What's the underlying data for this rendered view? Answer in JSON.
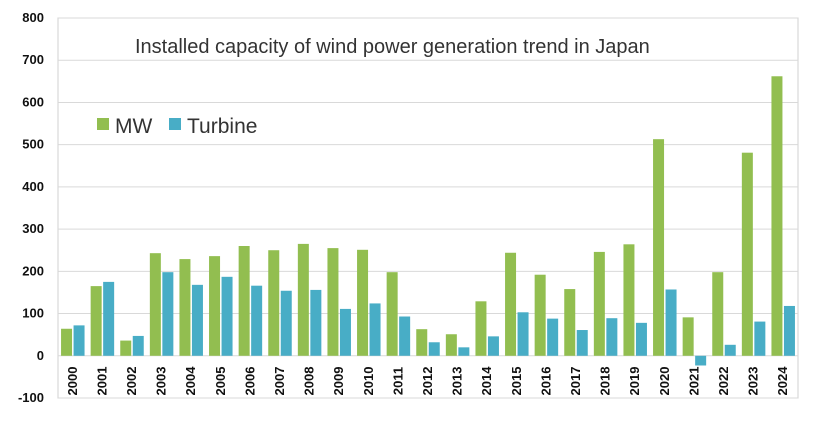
{
  "chart_data": {
    "type": "bar",
    "title": "Installed capacity of wind power generation trend in Japan",
    "xlabel": "",
    "ylabel": "",
    "ylim": [
      -100,
      800
    ],
    "yticks": [
      -100,
      0,
      100,
      200,
      300,
      400,
      500,
      600,
      700,
      800
    ],
    "grid": true,
    "legend_position": "top-left",
    "categories": [
      "2000",
      "2001",
      "2002",
      "2003",
      "2004",
      "2005",
      "2006",
      "2007",
      "2008",
      "2009",
      "2010",
      "2011",
      "2012",
      "2013",
      "2014",
      "2015",
      "2016",
      "2017",
      "2018",
      "2019",
      "2020",
      "2021",
      "2022",
      "2023",
      "2024"
    ],
    "series": [
      {
        "name": "MW",
        "color": "#92BE50",
        "values": [
          64,
          165,
          36,
          243,
          229,
          236,
          260,
          250,
          265,
          255,
          251,
          198,
          63,
          51,
          129,
          244,
          192,
          158,
          246,
          264,
          513,
          91,
          198,
          481,
          662
        ]
      },
      {
        "name": "Turbine",
        "color": "#48ADC6",
        "values": [
          72,
          175,
          47,
          198,
          168,
          187,
          166,
          154,
          156,
          111,
          124,
          93,
          32,
          20,
          46,
          103,
          88,
          61,
          89,
          78,
          157,
          -23,
          26,
          81,
          118
        ]
      }
    ]
  }
}
